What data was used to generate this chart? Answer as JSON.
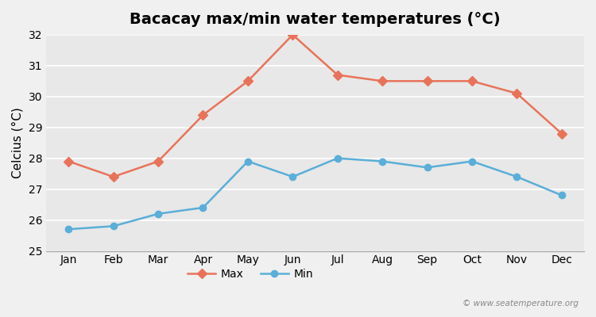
{
  "title": "Bacacay max/min water temperatures (°C)",
  "xlabel": "",
  "ylabel": "Celcius (°C)",
  "months": [
    "Jan",
    "Feb",
    "Mar",
    "Apr",
    "May",
    "Jun",
    "Jul",
    "Aug",
    "Sep",
    "Oct",
    "Nov",
    "Dec"
  ],
  "max_temps": [
    27.9,
    27.4,
    27.9,
    29.4,
    30.5,
    32.0,
    30.7,
    30.5,
    30.5,
    30.5,
    30.1,
    28.8
  ],
  "min_temps": [
    25.7,
    25.8,
    26.2,
    26.4,
    27.9,
    27.4,
    28.0,
    27.9,
    27.7,
    27.9,
    27.4,
    26.8
  ],
  "max_color": "#e8735a",
  "min_color": "#5aaed8",
  "ylim": [
    25,
    32
  ],
  "yticks": [
    25,
    26,
    27,
    28,
    29,
    30,
    31,
    32
  ],
  "bg_color": "#f0f0f0",
  "plot_bg_color": "#e8e8e8",
  "grid_color": "#ffffff",
  "watermark": "© www.seatemperature.org",
  "legend_max": "Max",
  "legend_min": "Min",
  "title_fontsize": 14,
  "axis_label_fontsize": 11,
  "tick_fontsize": 10
}
